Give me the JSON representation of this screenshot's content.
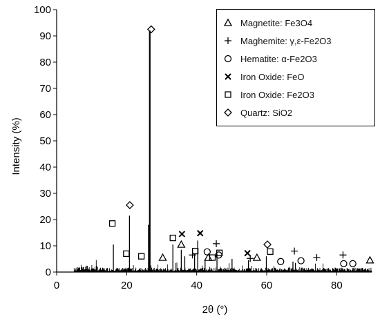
{
  "chart_data": {
    "type": "line",
    "xlabel": "2θ (°)",
    "ylabel": "Intensity (%)",
    "xlim": [
      0,
      90
    ],
    "ylim": [
      0,
      100
    ],
    "x_ticks": [
      "0",
      "20",
      "40",
      "60",
      "80"
    ],
    "y_ticks": [
      "0",
      "10",
      "20",
      "30",
      "40",
      "50",
      "60",
      "70",
      "80",
      "90",
      "100"
    ],
    "grid": false,
    "legend_position": "top-right",
    "line_color": "#000000",
    "legend": [
      {
        "symbol": "triangle",
        "name": "Magnetite: Fe",
        "formula": [
          [
            "Fe",
            ""
          ],
          [
            "3",
            "sub"
          ],
          [
            "O",
            ""
          ],
          [
            "4",
            "sub"
          ]
        ],
        "label": "Magnetite: Fe3O4"
      },
      {
        "symbol": "plus",
        "name": "Maghemite",
        "label": "Maghemite: γ,ε-Fe2O3"
      },
      {
        "symbol": "circle",
        "name": "Hematite",
        "label": "Hematite: α-Fe2O3"
      },
      {
        "symbol": "cross",
        "name": "Iron Oxide FeO",
        "label": "Iron Oxide: FeO"
      },
      {
        "symbol": "square",
        "name": "Iron Oxide Fe2O3",
        "label": "Iron Oxide: Fe2O3"
      },
      {
        "symbol": "diamond",
        "name": "Quartz",
        "label": "Quartz: SiO2"
      }
    ],
    "peaks": [
      {
        "x": 16.2,
        "y": 10.5
      },
      {
        "x": 20.8,
        "y": 21.5
      },
      {
        "x": 26.2,
        "y": 18
      },
      {
        "x": 26.6,
        "y": 92
      },
      {
        "x": 33.2,
        "y": 10.5
      },
      {
        "x": 35.6,
        "y": 8.5
      },
      {
        "x": 36.6,
        "y": 6
      },
      {
        "x": 39.4,
        "y": 7
      },
      {
        "x": 40.3,
        "y": 12
      },
      {
        "x": 42.4,
        "y": 4.5
      },
      {
        "x": 45.8,
        "y": 7
      },
      {
        "x": 50.1,
        "y": 5
      },
      {
        "x": 54.8,
        "y": 4.5
      },
      {
        "x": 59.9,
        "y": 6
      },
      {
        "x": 67.5,
        "y": 4
      },
      {
        "x": 68.2,
        "y": 3.5
      }
    ],
    "markers": [
      {
        "symbol": "square",
        "x": 15.9,
        "y": 18.5
      },
      {
        "symbol": "square",
        "x": 19.9,
        "y": 7
      },
      {
        "symbol": "diamond",
        "x": 20.9,
        "y": 25.5
      },
      {
        "symbol": "square",
        "x": 24.2,
        "y": 6
      },
      {
        "symbol": "diamond",
        "x": 27.0,
        "y": 92.5
      },
      {
        "symbol": "triangle",
        "x": 30.3,
        "y": 5.5
      },
      {
        "symbol": "square",
        "x": 33.2,
        "y": 13
      },
      {
        "symbol": "triangle",
        "x": 35.6,
        "y": 10.5
      },
      {
        "symbol": "cross",
        "x": 35.8,
        "y": 14.5
      },
      {
        "symbol": "plus",
        "x": 38.8,
        "y": 6.5
      },
      {
        "symbol": "square",
        "x": 39.6,
        "y": 8
      },
      {
        "symbol": "cross",
        "x": 41.0,
        "y": 14.8
      },
      {
        "symbol": "circle",
        "x": 43.0,
        "y": 7.7
      },
      {
        "symbol": "triangle",
        "x": 43.3,
        "y": 5.5
      },
      {
        "symbol": "square",
        "x": 44.5,
        "y": 5.5
      },
      {
        "symbol": "plus",
        "x": 45.6,
        "y": 10.8
      },
      {
        "symbol": "circle",
        "x": 46.3,
        "y": 6.5
      },
      {
        "symbol": "square",
        "x": 46.5,
        "y": 7.3
      },
      {
        "symbol": "cross",
        "x": 54.5,
        "y": 7.2
      },
      {
        "symbol": "plus",
        "x": 55.3,
        "y": 5.2
      },
      {
        "symbol": "triangle",
        "x": 57.2,
        "y": 5.5
      },
      {
        "symbol": "diamond",
        "x": 60.2,
        "y": 10.5
      },
      {
        "symbol": "square",
        "x": 61.0,
        "y": 7.8
      },
      {
        "symbol": "circle",
        "x": 64.0,
        "y": 4
      },
      {
        "symbol": "plus",
        "x": 67.9,
        "y": 8
      },
      {
        "symbol": "circle",
        "x": 69.8,
        "y": 4.3
      },
      {
        "symbol": "plus",
        "x": 74.3,
        "y": 5.5
      },
      {
        "symbol": "plus",
        "x": 81.8,
        "y": 6.5
      },
      {
        "symbol": "circle",
        "x": 82.0,
        "y": 3.2
      },
      {
        "symbol": "circle",
        "x": 84.6,
        "y": 3.2
      },
      {
        "symbol": "triangle",
        "x": 89.5,
        "y": 4.5
      }
    ]
  }
}
